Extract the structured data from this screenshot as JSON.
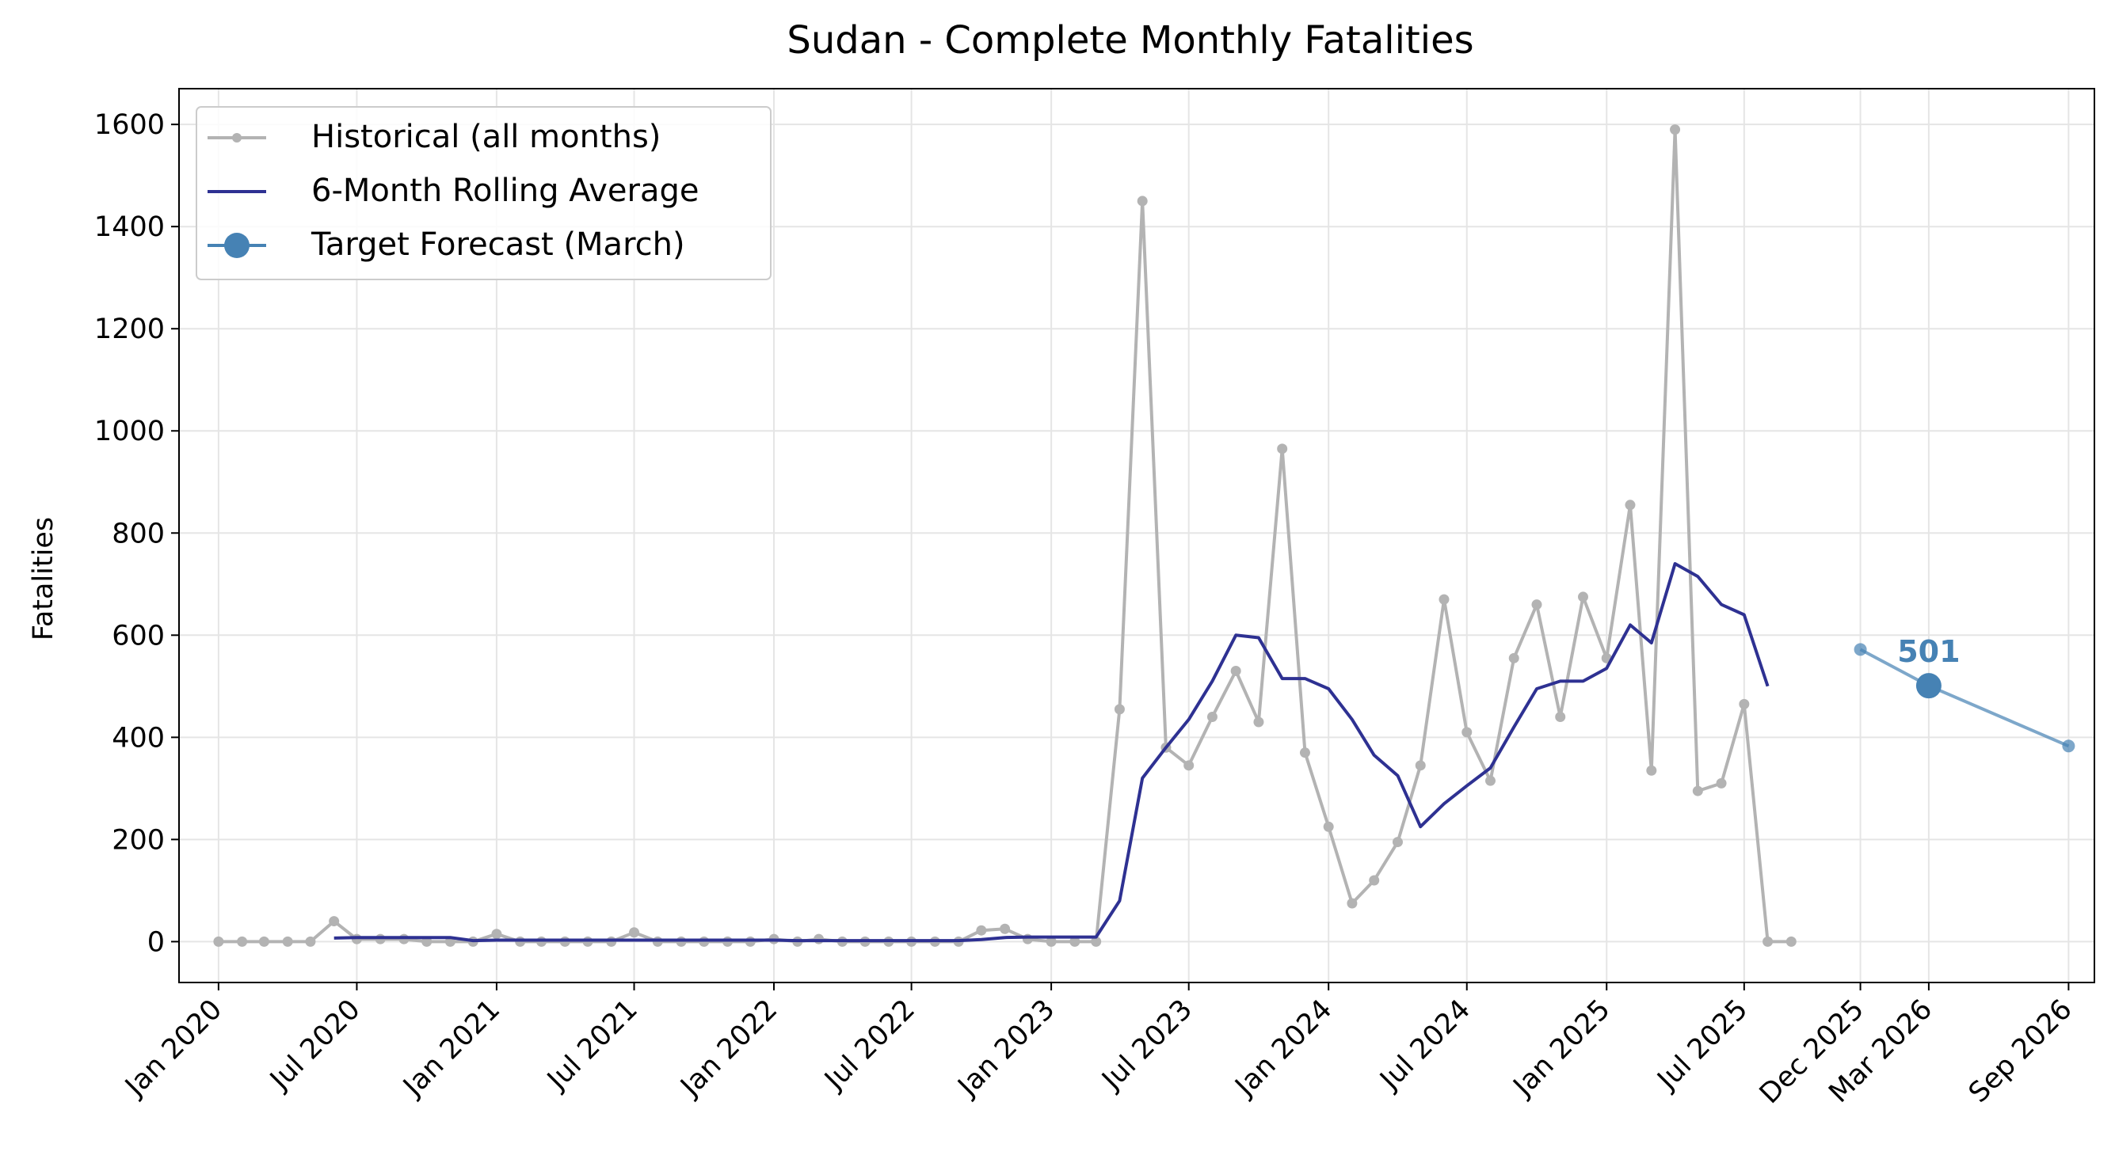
{
  "chart_data": {
    "type": "line",
    "title": "Sudan - Complete Monthly Fatalities",
    "xlabel": "",
    "ylabel": "Fatalities",
    "ylim": [
      -80,
      1670
    ],
    "xlim": [
      "2019-11-10",
      "2026-10-05"
    ],
    "grid": true,
    "legend_position": "top-left",
    "x_ticks": [
      {
        "date": "2020-01-01",
        "label": "Jan 2020"
      },
      {
        "date": "2020-07-01",
        "label": "Jul 2020"
      },
      {
        "date": "2021-01-01",
        "label": "Jan 2021"
      },
      {
        "date": "2021-07-01",
        "label": "Jul 2021"
      },
      {
        "date": "2022-01-01",
        "label": "Jan 2022"
      },
      {
        "date": "2022-07-01",
        "label": "Jul 2022"
      },
      {
        "date": "2023-01-01",
        "label": "Jan 2023"
      },
      {
        "date": "2023-07-01",
        "label": "Jul 2023"
      },
      {
        "date": "2024-01-01",
        "label": "Jan 2024"
      },
      {
        "date": "2024-07-01",
        "label": "Jul 2024"
      },
      {
        "date": "2025-01-01",
        "label": "Jan 2025"
      },
      {
        "date": "2025-07-01",
        "label": "Jul 2025"
      },
      {
        "date": "2025-12-01",
        "label": "Dec 2025"
      },
      {
        "date": "2026-03-01",
        "label": "Mar 2026"
      },
      {
        "date": "2026-09-01",
        "label": "Sep 2026"
      }
    ],
    "y_ticks": [
      0,
      200,
      400,
      600,
      800,
      1000,
      1200,
      1400,
      1600
    ],
    "series": [
      {
        "name": "Historical (all months)",
        "color": "#b3b3b3",
        "marker": "dot",
        "x": [
          "2020-01",
          "2020-02",
          "2020-03",
          "2020-04",
          "2020-05",
          "2020-06",
          "2020-07",
          "2020-08",
          "2020-09",
          "2020-10",
          "2020-11",
          "2020-12",
          "2021-01",
          "2021-02",
          "2021-03",
          "2021-04",
          "2021-05",
          "2021-06",
          "2021-07",
          "2021-08",
          "2021-09",
          "2021-10",
          "2021-11",
          "2021-12",
          "2022-01",
          "2022-02",
          "2022-03",
          "2022-04",
          "2022-05",
          "2022-06",
          "2022-07",
          "2022-08",
          "2022-09",
          "2022-10",
          "2022-11",
          "2022-12",
          "2023-01",
          "2023-02",
          "2023-03",
          "2023-04",
          "2023-05",
          "2023-06",
          "2023-07",
          "2023-08",
          "2023-09",
          "2023-10",
          "2023-11",
          "2023-12",
          "2024-01",
          "2024-02",
          "2024-03",
          "2024-04",
          "2024-05",
          "2024-06",
          "2024-07",
          "2024-08",
          "2024-09",
          "2024-10",
          "2024-11",
          "2024-12",
          "2025-01",
          "2025-02",
          "2025-03",
          "2025-04",
          "2025-05",
          "2025-06",
          "2025-07",
          "2025-08",
          "2025-09"
        ],
        "values": [
          0,
          0,
          0,
          0,
          0,
          40,
          5,
          5,
          5,
          0,
          0,
          0,
          15,
          0,
          0,
          0,
          0,
          0,
          18,
          0,
          0,
          0,
          0,
          0,
          5,
          0,
          5,
          0,
          0,
          0,
          0,
          0,
          0,
          22,
          25,
          5,
          0,
          0,
          0,
          455,
          1450,
          380,
          345,
          440,
          530,
          430,
          965,
          370,
          225,
          75,
          120,
          195,
          345,
          670,
          410,
          315,
          555,
          660,
          440,
          675,
          555,
          855,
          335,
          1590,
          295,
          310,
          465,
          0,
          0
        ]
      },
      {
        "name": "6-Month Rolling Average",
        "color": "#2e3192",
        "marker": "none",
        "x": [
          "2020-06",
          "2020-07",
          "2020-08",
          "2020-09",
          "2020-10",
          "2020-11",
          "2020-12",
          "2021-01",
          "2021-02",
          "2021-03",
          "2021-04",
          "2021-05",
          "2021-06",
          "2021-07",
          "2021-08",
          "2021-09",
          "2021-10",
          "2021-11",
          "2021-12",
          "2022-01",
          "2022-02",
          "2022-03",
          "2022-04",
          "2022-05",
          "2022-06",
          "2022-07",
          "2022-08",
          "2022-09",
          "2022-10",
          "2022-11",
          "2022-12",
          "2023-01",
          "2023-02",
          "2023-03",
          "2023-04",
          "2023-05",
          "2023-06",
          "2023-07",
          "2023-08",
          "2023-09",
          "2023-10",
          "2023-11",
          "2023-12",
          "2024-01",
          "2024-02",
          "2024-03",
          "2024-04",
          "2024-05",
          "2024-06",
          "2024-07",
          "2024-08",
          "2024-09",
          "2024-10",
          "2024-11",
          "2024-12",
          "2025-01",
          "2025-02",
          "2025-03",
          "2025-04",
          "2025-05",
          "2025-06",
          "2025-07",
          "2025-08"
        ],
        "values": [
          7,
          8,
          8,
          8,
          8,
          8,
          2,
          3,
          3,
          3,
          3,
          3,
          3,
          3,
          3,
          3,
          3,
          3,
          3,
          3,
          2,
          2,
          2,
          2,
          2,
          2,
          2,
          2,
          4,
          8,
          9,
          9,
          9,
          9,
          80,
          320,
          380,
          435,
          510,
          600,
          595,
          515,
          515,
          495,
          435,
          365,
          325,
          225,
          270,
          305,
          340,
          420,
          495,
          510,
          510,
          535,
          620,
          585,
          740,
          715,
          660,
          640,
          500
        ]
      }
    ],
    "forecast": {
      "name": "Target Forecast (March)",
      "color": "#4682b4",
      "x": [
        "2025-12-01",
        "2026-03-01",
        "2026-09-01"
      ],
      "values": [
        572,
        501,
        383
      ],
      "target_date": "2026-03-01",
      "target_value": 501,
      "target_label": "501"
    }
  }
}
